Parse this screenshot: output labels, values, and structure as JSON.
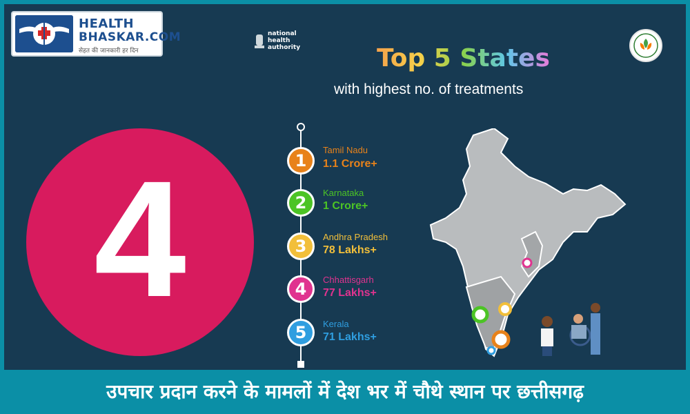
{
  "logo": {
    "line1": "HEALTH",
    "line2": "BHASKAR.COM",
    "tagline": "सेहत की जानकारी हर दिन"
  },
  "nha": {
    "text": "national health authority"
  },
  "title": "Top 5 States",
  "subtitle": "with highest no. of treatments",
  "highlight_number": "4",
  "states": [
    {
      "rank": "1",
      "name": "Tamil Nadu",
      "value": "1.1 Crore+",
      "color": "#e8821a"
    },
    {
      "rank": "2",
      "name": "Karnataka",
      "value": "1 Crore+",
      "color": "#4cc425"
    },
    {
      "rank": "3",
      "name": "Andhra Pradesh",
      "value": "78 Lakhs+",
      "color": "#f2bf3a"
    },
    {
      "rank": "4",
      "name": "Chhattisgarh",
      "value": "77 Lakhs+",
      "color": "#e0338f"
    },
    {
      "rank": "5",
      "name": "Kerala",
      "value": "71 Lakhs+",
      "color": "#2f9ee0"
    }
  ],
  "banner": "उपचार प्रदान करने के मामलों में देश भर में चौथे स्थान पर छत्तीसगढ़",
  "colors": {
    "frame_bg": "#173a52",
    "accent_teal": "#0b8fa6",
    "circle": "#d81b5e"
  }
}
